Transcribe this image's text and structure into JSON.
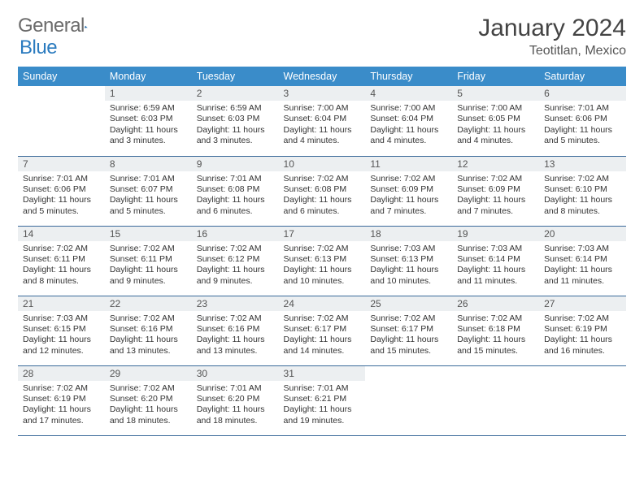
{
  "logo": {
    "word1": "General",
    "word2": "Blue"
  },
  "title": "January 2024",
  "location": "Teotitlan, Mexico",
  "colors": {
    "header_bg": "#3a8cc9",
    "header_text": "#ffffff",
    "daynum_bg": "#eceff1",
    "row_border": "#3a6a9a",
    "logo_gray": "#6b6b6b",
    "logo_blue": "#2b7bbf"
  },
  "daynames": [
    "Sunday",
    "Monday",
    "Tuesday",
    "Wednesday",
    "Thursday",
    "Friday",
    "Saturday"
  ],
  "weeks": [
    [
      {
        "empty": true
      },
      {
        "n": "1",
        "sunrise": "6:59 AM",
        "sunset": "6:03 PM",
        "daylight": "11 hours and 3 minutes."
      },
      {
        "n": "2",
        "sunrise": "6:59 AM",
        "sunset": "6:03 PM",
        "daylight": "11 hours and 3 minutes."
      },
      {
        "n": "3",
        "sunrise": "7:00 AM",
        "sunset": "6:04 PM",
        "daylight": "11 hours and 4 minutes."
      },
      {
        "n": "4",
        "sunrise": "7:00 AM",
        "sunset": "6:04 PM",
        "daylight": "11 hours and 4 minutes."
      },
      {
        "n": "5",
        "sunrise": "7:00 AM",
        "sunset": "6:05 PM",
        "daylight": "11 hours and 4 minutes."
      },
      {
        "n": "6",
        "sunrise": "7:01 AM",
        "sunset": "6:06 PM",
        "daylight": "11 hours and 5 minutes."
      }
    ],
    [
      {
        "n": "7",
        "sunrise": "7:01 AM",
        "sunset": "6:06 PM",
        "daylight": "11 hours and 5 minutes."
      },
      {
        "n": "8",
        "sunrise": "7:01 AM",
        "sunset": "6:07 PM",
        "daylight": "11 hours and 5 minutes."
      },
      {
        "n": "9",
        "sunrise": "7:01 AM",
        "sunset": "6:08 PM",
        "daylight": "11 hours and 6 minutes."
      },
      {
        "n": "10",
        "sunrise": "7:02 AM",
        "sunset": "6:08 PM",
        "daylight": "11 hours and 6 minutes."
      },
      {
        "n": "11",
        "sunrise": "7:02 AM",
        "sunset": "6:09 PM",
        "daylight": "11 hours and 7 minutes."
      },
      {
        "n": "12",
        "sunrise": "7:02 AM",
        "sunset": "6:09 PM",
        "daylight": "11 hours and 7 minutes."
      },
      {
        "n": "13",
        "sunrise": "7:02 AM",
        "sunset": "6:10 PM",
        "daylight": "11 hours and 8 minutes."
      }
    ],
    [
      {
        "n": "14",
        "sunrise": "7:02 AM",
        "sunset": "6:11 PM",
        "daylight": "11 hours and 8 minutes."
      },
      {
        "n": "15",
        "sunrise": "7:02 AM",
        "sunset": "6:11 PM",
        "daylight": "11 hours and 9 minutes."
      },
      {
        "n": "16",
        "sunrise": "7:02 AM",
        "sunset": "6:12 PM",
        "daylight": "11 hours and 9 minutes."
      },
      {
        "n": "17",
        "sunrise": "7:02 AM",
        "sunset": "6:13 PM",
        "daylight": "11 hours and 10 minutes."
      },
      {
        "n": "18",
        "sunrise": "7:03 AM",
        "sunset": "6:13 PM",
        "daylight": "11 hours and 10 minutes."
      },
      {
        "n": "19",
        "sunrise": "7:03 AM",
        "sunset": "6:14 PM",
        "daylight": "11 hours and 11 minutes."
      },
      {
        "n": "20",
        "sunrise": "7:03 AM",
        "sunset": "6:14 PM",
        "daylight": "11 hours and 11 minutes."
      }
    ],
    [
      {
        "n": "21",
        "sunrise": "7:03 AM",
        "sunset": "6:15 PM",
        "daylight": "11 hours and 12 minutes."
      },
      {
        "n": "22",
        "sunrise": "7:02 AM",
        "sunset": "6:16 PM",
        "daylight": "11 hours and 13 minutes."
      },
      {
        "n": "23",
        "sunrise": "7:02 AM",
        "sunset": "6:16 PM",
        "daylight": "11 hours and 13 minutes."
      },
      {
        "n": "24",
        "sunrise": "7:02 AM",
        "sunset": "6:17 PM",
        "daylight": "11 hours and 14 minutes."
      },
      {
        "n": "25",
        "sunrise": "7:02 AM",
        "sunset": "6:17 PM",
        "daylight": "11 hours and 15 minutes."
      },
      {
        "n": "26",
        "sunrise": "7:02 AM",
        "sunset": "6:18 PM",
        "daylight": "11 hours and 15 minutes."
      },
      {
        "n": "27",
        "sunrise": "7:02 AM",
        "sunset": "6:19 PM",
        "daylight": "11 hours and 16 minutes."
      }
    ],
    [
      {
        "n": "28",
        "sunrise": "7:02 AM",
        "sunset": "6:19 PM",
        "daylight": "11 hours and 17 minutes."
      },
      {
        "n": "29",
        "sunrise": "7:02 AM",
        "sunset": "6:20 PM",
        "daylight": "11 hours and 18 minutes."
      },
      {
        "n": "30",
        "sunrise": "7:01 AM",
        "sunset": "6:20 PM",
        "daylight": "11 hours and 18 minutes."
      },
      {
        "n": "31",
        "sunrise": "7:01 AM",
        "sunset": "6:21 PM",
        "daylight": "11 hours and 19 minutes."
      },
      {
        "empty": true
      },
      {
        "empty": true
      },
      {
        "empty": true
      }
    ]
  ],
  "labels": {
    "sunrise": "Sunrise: ",
    "sunset": "Sunset: ",
    "daylight": "Daylight: "
  }
}
